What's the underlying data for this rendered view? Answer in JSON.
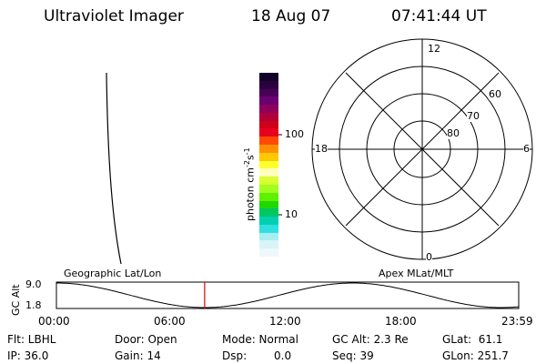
{
  "header": {
    "instrument": "Ultraviolet Imager",
    "date": "18 Aug 07",
    "time": "07:41:44 UT"
  },
  "colorbar": {
    "unit_main": "photon cm",
    "unit_sup1": "-2",
    "unit_s": "s",
    "unit_sup2": "-1",
    "tick_100": "100",
    "tick_10": "10",
    "colors": [
      "#10002a",
      "#2a003e",
      "#4a0058",
      "#6a0070",
      "#90005a",
      "#b0003a",
      "#d00018",
      "#e8001e",
      "#ff4a00",
      "#ff9000",
      "#ffc800",
      "#ffff30",
      "#ffffc0",
      "#d8ff30",
      "#a0ff20",
      "#60f000",
      "#20d800",
      "#00c860",
      "#00d0b0",
      "#30e0e0",
      "#a8eef0",
      "#d8f4f6",
      "#eef8fa"
    ]
  },
  "polar": {
    "mlt_12": "12",
    "mlt_18": "18",
    "mlt_6": "6",
    "mlt_0": "0",
    "lat_60": "60",
    "lat_70": "70",
    "lat_80": "80"
  },
  "orbit": {
    "left_label": "Geographic Lat/Lon",
    "right_label": "Apex MLat/MLT",
    "ylabel": "GC Alt",
    "y_max": "9.0",
    "y_min": "1.8",
    "x_ticks": [
      "00:00",
      "06:00",
      "12:00",
      "18:00",
      "23:59"
    ],
    "current_time_hours": 7.695
  },
  "status": {
    "flt": "Flt: LBHL",
    "ip": "IP: 36.0",
    "door": "Door: Open",
    "gain": "Gain: 14",
    "mode": "Mode: Normal",
    "dsp_label": "Dsp:",
    "dsp_value": "0.0",
    "gc_alt": "GC Alt: 2.3 Re",
    "seq": "Seq: 39",
    "glat": "GLat:  61.1",
    "glon": "GLon: 251.7"
  }
}
